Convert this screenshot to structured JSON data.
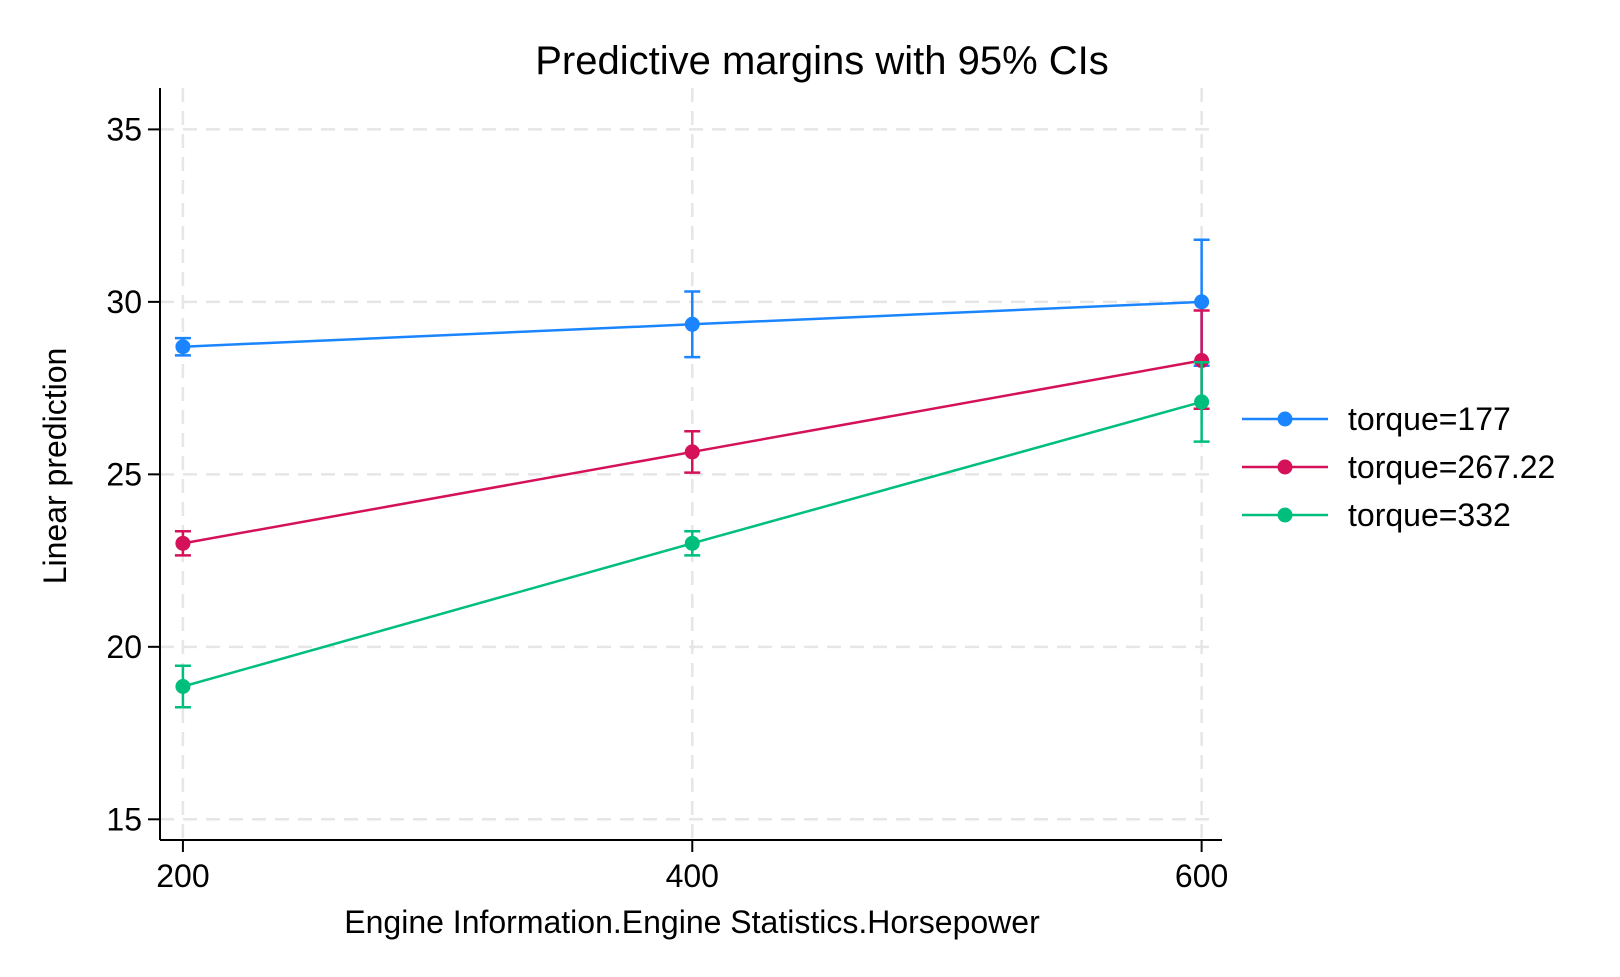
{
  "chart_data": {
    "type": "line",
    "title": "Predictive margins with 95% CIs",
    "xlabel": "Engine Information.Engine Statistics.Horsepower",
    "ylabel": "Linear prediction",
    "x": [
      200,
      400,
      600
    ],
    "xticks": [
      200,
      400,
      600
    ],
    "yticks": [
      15,
      20,
      25,
      30,
      35
    ],
    "xlim": [
      191,
      608
    ],
    "ylim": [
      14.4,
      36.2
    ],
    "grid": true,
    "legend_position": "right",
    "series": [
      {
        "name": "torque=177",
        "color": "#1a85ff",
        "values": [
          28.7,
          29.35,
          30.0
        ],
        "ci_lower": [
          28.45,
          28.4,
          28.15
        ],
        "ci_upper": [
          28.95,
          30.3,
          31.8
        ]
      },
      {
        "name": "torque=267.22",
        "color": "#d41159",
        "values": [
          23.0,
          25.65,
          28.3
        ],
        "ci_lower": [
          22.65,
          25.05,
          26.9
        ],
        "ci_upper": [
          23.35,
          26.25,
          29.75
        ]
      },
      {
        "name": "torque=332",
        "color": "#00bf7d",
        "values": [
          18.85,
          23.0,
          27.1
        ],
        "ci_lower": [
          18.25,
          22.65,
          25.95
        ],
        "ci_upper": [
          19.45,
          23.35,
          28.25
        ]
      }
    ]
  }
}
